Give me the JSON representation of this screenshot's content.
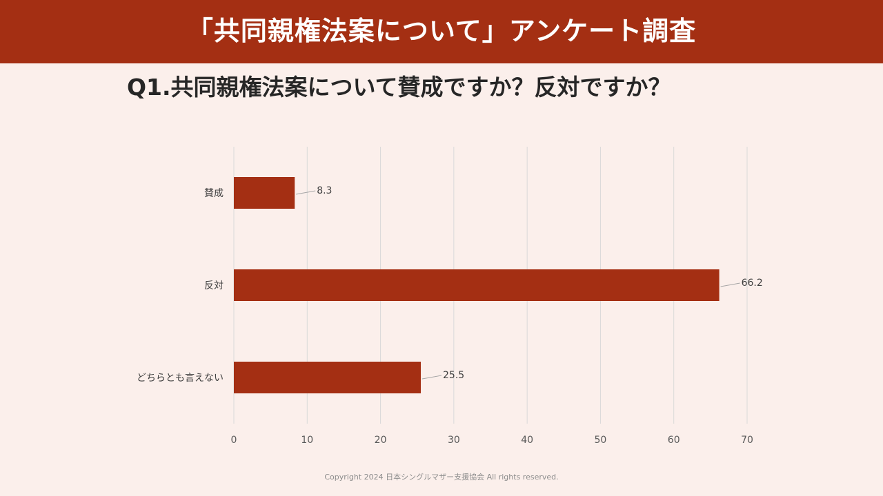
{
  "header": {
    "title": "「共同親権法案について」アンケート調査"
  },
  "question": "Q1.共同親権法案について賛成ですか？反対ですか？",
  "footer": {
    "copyright": "Copyright 2024 日本シングルマザー支援協会 All rights reserved."
  },
  "colors": {
    "background": "#fbefeb",
    "accent": "#a42f13",
    "bar": "#a42f13",
    "gridline": "#d9d9d9",
    "label_text": "#404040"
  },
  "chart_data": {
    "type": "bar",
    "orientation": "horizontal",
    "categories": [
      "賛成",
      "反対",
      "どちらとも言えない"
    ],
    "values": [
      8.3,
      66.2,
      25.5
    ],
    "data_labels": [
      "8.3",
      "66.2",
      "25.5"
    ],
    "xlim": [
      0,
      70
    ],
    "xticks": [
      0,
      10,
      20,
      30,
      40,
      50,
      60,
      70
    ],
    "grid": "vertical",
    "legend": "none"
  }
}
